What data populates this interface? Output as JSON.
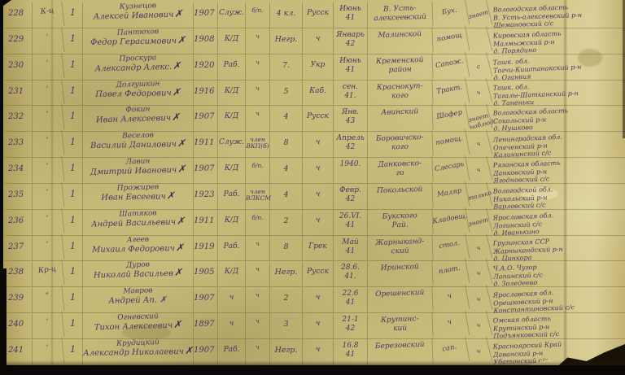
{
  "colors": {
    "paper": "#c9bc7c",
    "ink": "#4b3663",
    "scan_edge": "#0b0905"
  },
  "rows": [
    {
      "num": "228",
      "rank": "К-ц",
      "count": "1",
      "surname": "Кузнецов",
      "given": "Алексей Иванович",
      "cross": "✗",
      "year": "1907",
      "social": "Служ.",
      "party": "б/п.",
      "edu": "4 кл.",
      "nat": "Русск",
      "date1": "Июнь",
      "date2": "41",
      "district1": "В. Усть-",
      "district2": "алексеевский",
      "spec": "Бух.",
      "note": "знает",
      "addr": [
        "Вологодская область",
        "В. Усть-алексеевский р-н",
        "Щемановский с/с"
      ]
    },
    {
      "num": "229",
      "rank": "’",
      "count": "1",
      "surname": "Пантюхов",
      "given": "Федор Герасимович",
      "cross": "✗",
      "year": "1908",
      "social": "К/Д",
      "party": "ч",
      "edu": "Негр.",
      "nat": "ч",
      "date1": "Январь",
      "date2": "42",
      "district1": "Малинской",
      "district2": "",
      "spec": "помощ",
      "note": "",
      "addr": [
        "Кировская область",
        "Малмыжский р-н",
        "д. Порядино"
      ]
    },
    {
      "num": "230",
      "rank": "’",
      "count": "1",
      "surname": "Проскура",
      "given": "Александр Алекс.",
      "cross": "✗",
      "year": "1920",
      "social": "Раб.",
      "party": "ч",
      "edu": "7.",
      "nat": "Укр",
      "date1": "Июнь",
      "date2": "41",
      "district1": "Кременской",
      "district2": "район",
      "spec": "Сапож.",
      "note": "с",
      "addr": [
        "Ташк. обл.",
        "Тогчи-Киштанакский р-н",
        "д. Оганвия"
      ]
    },
    {
      "num": "231",
      "rank": "’",
      "count": "1",
      "surname": "Долгушкин",
      "given": "Павел Федорович",
      "cross": "✗",
      "year": "1916",
      "social": "К/Д",
      "party": "ч",
      "edu": "5",
      "nat": "Каб.",
      "date1": "сен.",
      "date2": "41.",
      "district1": "Краснокут-",
      "district2": "кого",
      "spec": "Тракт.",
      "note": "ч",
      "addr": [
        "Ташк. обл.",
        "Тагалы-Шатканский р-н",
        "д. Таненьки"
      ]
    },
    {
      "num": "232",
      "rank": "’",
      "count": "1",
      "surname": "Фокин",
      "given": "Иван Алексеевич",
      "cross": "✗",
      "year": "1907",
      "social": "К/Д",
      "party": "ч",
      "edu": "4",
      "nat": "Русск",
      "date1": "Янв.",
      "date2": "43",
      "district1": "Авинский",
      "district2": "",
      "spec": "Шофер",
      "note": "знает наблюд.",
      "addr": [
        "Вологодская область",
        "Сокольский р-н",
        "д. Нушково"
      ]
    },
    {
      "num": "233",
      "rank": "’",
      "count": "1",
      "surname": "Веселов",
      "given": "Василий Данилович",
      "cross": "✗",
      "year": "1911",
      "social": "Служ.",
      "party": "член ВКП(б)",
      "edu": "8",
      "nat": "ч",
      "date1": "Апрель",
      "date2": "42",
      "district1": "Боровичско-",
      "district2": "кого",
      "spec": "помощ.",
      "note": "ч",
      "addr": [
        "Ленинградская обл.",
        "Опеченский р-н",
        "Калининский с/с"
      ]
    },
    {
      "num": "234",
      "rank": "’",
      "count": "1",
      "surname": "Лавин",
      "given": "Дмитрий Иванович",
      "cross": "✗",
      "year": "1907",
      "social": "К/Д",
      "party": "б/п.",
      "edu": "4",
      "nat": "ч",
      "date1": "1940.",
      "date2": "",
      "district1": "Данковско-",
      "district2": "го",
      "spec": "Слесарь",
      "note": "ч",
      "addr": [
        "Рязанская область",
        "Данковский р-н",
        "Ягодновский с/с"
      ]
    },
    {
      "num": "235",
      "rank": "’",
      "count": "1",
      "surname": "Прожирев",
      "given": "Иван Евсеевич",
      "cross": "✗",
      "year": "1923",
      "social": "Раб.",
      "party": "член ВЛКСМ",
      "edu": "4",
      "nat": "ч",
      "date1": "Февр.",
      "date2": "42",
      "district1": "Покольской",
      "district2": "",
      "spec": "Маляр",
      "note": "только",
      "addr": [
        "Вологодской обл.",
        "Никольский р-н",
        "Варловский с/с"
      ]
    },
    {
      "num": "236",
      "rank": "’",
      "count": "1",
      "surname": "Шатяков",
      "given": "Андрей Васильевич",
      "cross": "✗",
      "year": "1911",
      "social": "К/Д",
      "party": "б/п.",
      "edu": "2",
      "nat": "ч",
      "date1": "26.VI.",
      "date2": "41",
      "district1": "Букского",
      "district2": "Рай.",
      "spec": "Кладовщ.",
      "note": "знает",
      "addr": [
        "Ярославская обл.",
        "Логинский с/с",
        "д. Иванькино"
      ]
    },
    {
      "num": "237",
      "rank": "’",
      "count": "1",
      "surname": "Агеев",
      "given": "Михаил Федорович",
      "cross": "✗",
      "year": "1919",
      "social": "Раб.",
      "party": "ч",
      "edu": "8",
      "nat": "Грек",
      "date1": "Май",
      "date2": "41",
      "district1": "Жарныканд-",
      "district2": "ский",
      "spec": "стол.",
      "note": "ч",
      "addr": [
        "Грузинская ССР",
        "Жарныкандский р-н",
        "д. Цинкора"
      ]
    },
    {
      "num": "238",
      "rank": "Кр-ц",
      "count": "1",
      "surname": "Дуров",
      "given": "Николай Васильев",
      "cross": "✗",
      "year": "1905",
      "social": "К/Д",
      "party": "ч",
      "edu": "Негр.",
      "nat": "Русск",
      "date1": "28.6.",
      "date2": "41.",
      "district1": "Иринской",
      "district2": "",
      "spec": "плот.",
      "note": "ч",
      "addr": [
        "Ч.А.О. Чугор",
        "Лапинский с/с",
        "д. Золедеево"
      ]
    },
    {
      "num": "239",
      "rank": "”",
      "count": "1",
      "surname": "Мавров",
      "given": "Андрей Ап. ✗",
      "cross": "",
      "year": "1907",
      "social": "ч",
      "party": "ч",
      "edu": "2",
      "nat": "ч",
      "date1": "22.6",
      "date2": "41",
      "district1": "Орешенский",
      "district2": "",
      "spec": "ч",
      "note": "ч",
      "addr": [
        "Ярославская обл.",
        "Орешковский р-н",
        "Константиновский с/с"
      ]
    },
    {
      "num": "240",
      "rank": "’",
      "count": "1",
      "surname": "Огневский",
      "given": "Тихон Алексеевич",
      "cross": "✗",
      "year": "1897",
      "social": "ч",
      "party": "ч",
      "edu": "3",
      "nat": "ч",
      "date1": "21-1",
      "date2": "42",
      "district1": "Крутинс-",
      "district2": "кий",
      "spec": "ч",
      "note": "ч",
      "addr": [
        "Омская область",
        "Крутинский р-н",
        "Подъянковский с/с"
      ]
    },
    {
      "num": "241",
      "rank": "’",
      "count": "1",
      "surname": "Крудицкий",
      "given": "Александр Николаевич",
      "cross": "✗",
      "year": "1907",
      "social": "Раб.",
      "party": "ч",
      "edu": "Негр.",
      "nat": "ч",
      "date1": "16.8",
      "date2": "41",
      "district1": "Березовский",
      "district2": "",
      "spec": "сап.",
      "note": "ч",
      "addr": [
        "Красноярский Край",
        "Даванский р-н",
        "Убатонский с/с"
      ]
    }
  ]
}
